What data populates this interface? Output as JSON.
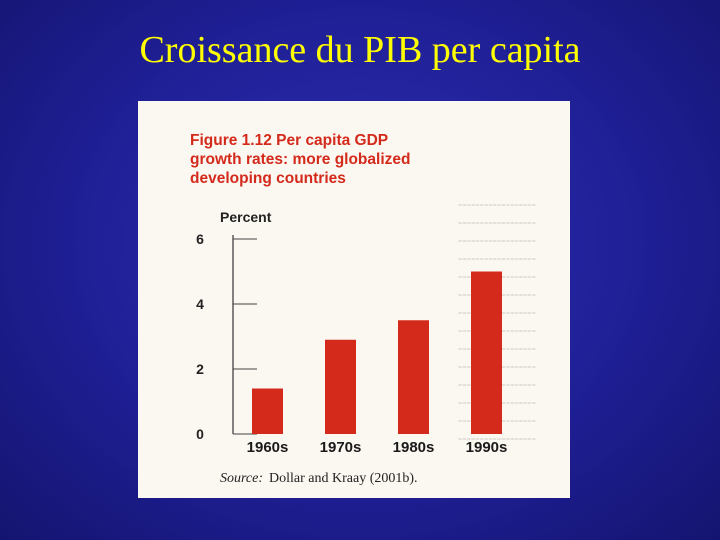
{
  "slide": {
    "title": "Croissance du PIB per capita"
  },
  "figure": {
    "title_lines": [
      "Figure 1.12   Per capita GDP",
      "growth rates: more globalized",
      "developing countries"
    ],
    "source_label": "Source:",
    "source_text": "Dollar and Kraay (2001b)."
  },
  "chart_data": {
    "type": "bar",
    "title": "Figure 1.12 Per capita GDP growth rates: more globalized developing countries",
    "ylabel": "Percent",
    "xlabel": "",
    "categories": [
      "1960s",
      "1970s",
      "1980s",
      "1990s"
    ],
    "values": [
      1.4,
      2.9,
      3.5,
      5.0
    ],
    "ylim": [
      0,
      6
    ],
    "yticks": [
      0,
      2,
      4,
      6
    ],
    "bar_color": "#d42a1c",
    "grid": false,
    "legend": "none"
  }
}
